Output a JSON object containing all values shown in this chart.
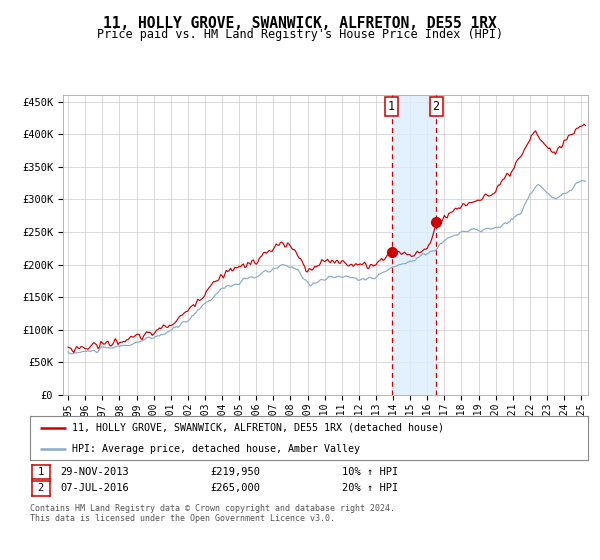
{
  "title": "11, HOLLY GROVE, SWANWICK, ALFRETON, DE55 1RX",
  "subtitle": "Price paid vs. HM Land Registry's House Price Index (HPI)",
  "xlim_start": 1994.7,
  "xlim_end": 2025.4,
  "ylim": [
    0,
    460000
  ],
  "yticks": [
    0,
    50000,
    100000,
    150000,
    200000,
    250000,
    300000,
    350000,
    400000,
    450000
  ],
  "ytick_labels": [
    "£0",
    "£50K",
    "£100K",
    "£150K",
    "£200K",
    "£250K",
    "£300K",
    "£350K",
    "£400K",
    "£450K"
  ],
  "xtick_years": [
    1995,
    1996,
    1997,
    1998,
    1999,
    2000,
    2001,
    2002,
    2003,
    2004,
    2005,
    2006,
    2007,
    2008,
    2009,
    2010,
    2011,
    2012,
    2013,
    2014,
    2015,
    2016,
    2017,
    2018,
    2019,
    2020,
    2021,
    2022,
    2023,
    2024,
    2025
  ],
  "sale1_date": 2013.91,
  "sale1_price": 219950,
  "sale1_label": "1",
  "sale2_date": 2016.52,
  "sale2_price": 265000,
  "sale2_label": "2",
  "shade_start": 2013.91,
  "shade_end": 2016.52,
  "line_property_color": "#cc0000",
  "line_hpi_color": "#88aacc",
  "vline_color": "#cc0000",
  "shade_color": "#ddeeff",
  "dot_color": "#cc0000",
  "legend_property": "11, HOLLY GROVE, SWANWICK, ALFRETON, DE55 1RX (detached house)",
  "legend_hpi": "HPI: Average price, detached house, Amber Valley",
  "table_row1": [
    "1",
    "29-NOV-2013",
    "£219,950",
    "10% ↑ HPI"
  ],
  "table_row2": [
    "2",
    "07-JUL-2016",
    "£265,000",
    "20% ↑ HPI"
  ],
  "footnote1": "Contains HM Land Registry data © Crown copyright and database right 2024.",
  "footnote2": "This data is licensed under the Open Government Licence v3.0.",
  "background_color": "#ffffff",
  "grid_color": "#cccccc"
}
